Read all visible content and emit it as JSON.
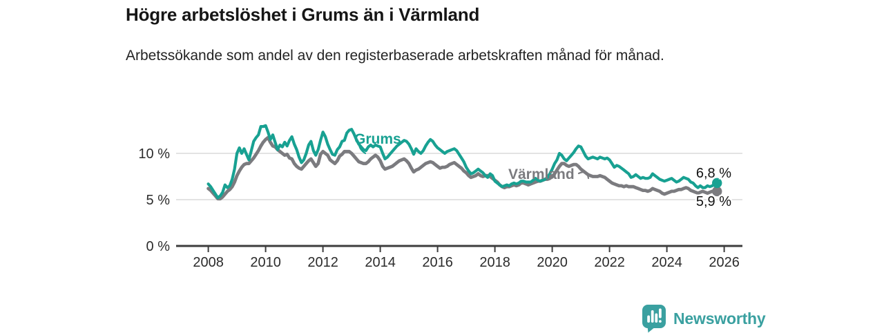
{
  "header": {
    "title": "Högre arbetslöshet i Grums än i Värmland",
    "subtitle": "Arbetssökande som andel av den registerbaserade arbetskraften månad för månad."
  },
  "footer": {
    "brand_name": "Newsworthy"
  },
  "colors": {
    "grums": "#18a192",
    "varmland": "#7b7b7f",
    "grid": "#dadada",
    "axis": "#3c3c3c",
    "tick_text": "#2b2b2b",
    "value_label": "#111111",
    "brand": "#3aa0a0"
  },
  "chart_data": {
    "type": "line",
    "unit": "%",
    "frequency": "monthly",
    "x_start": "2008-01",
    "x_end": "2025-10",
    "grid": "horizontal",
    "legend": "inline-labels",
    "ylim": [
      0,
      13.5
    ],
    "x_tick_labels": [
      "2008",
      "2010",
      "2012",
      "2014",
      "2016",
      "2018",
      "2020",
      "2022",
      "2024",
      "2026"
    ],
    "y_ticks": [
      {
        "value": 0,
        "label": "0 %"
      },
      {
        "value": 5,
        "label": "5 %"
      },
      {
        "value": 10,
        "label": "10 %"
      }
    ],
    "series": [
      {
        "name": "Grums",
        "color": "#18a192",
        "end_value": 6.8,
        "end_label": "6,8 %",
        "values": [
          6.7,
          6.4,
          6.0,
          5.6,
          5.2,
          5.4,
          5.8,
          6.6,
          6.3,
          6.5,
          7.2,
          8.3,
          10.0,
          10.6,
          10.0,
          10.5,
          9.9,
          9.3,
          10.3,
          11.3,
          11.7,
          12.0,
          12.9,
          12.9,
          13.0,
          12.3,
          11.5,
          12.0,
          11.2,
          10.4,
          10.9,
          10.7,
          11.2,
          10.8,
          11.4,
          11.8,
          11.0,
          10.4,
          9.6,
          9.0,
          9.3,
          10.0,
          10.9,
          11.3,
          10.3,
          9.8,
          10.4,
          11.4,
          12.3,
          11.8,
          11.0,
          10.4,
          9.9,
          9.8,
          10.4,
          10.7,
          11.3,
          11.4,
          12.2,
          12.5,
          12.6,
          12.1,
          11.5,
          11.0,
          10.7,
          10.4,
          10.3,
          10.7,
          10.9,
          10.7,
          10.9,
          10.8,
          10.7,
          10.0,
          9.4,
          9.6,
          9.9,
          10.2,
          10.5,
          10.8,
          11.0,
          11.2,
          11.4,
          11.3,
          11.0,
          10.5,
          9.9,
          10.5,
          10.2,
          10.0,
          10.3,
          10.8,
          11.2,
          11.5,
          11.3,
          10.9,
          10.6,
          10.4,
          10.2,
          10.0,
          10.2,
          10.3,
          10.4,
          10.5,
          10.3,
          9.9,
          9.5,
          9.1,
          8.5,
          8.1,
          7.8,
          7.9,
          8.1,
          8.3,
          8.1,
          7.9,
          7.6,
          7.4,
          7.8,
          7.6,
          7.0,
          6.8,
          6.6,
          6.4,
          6.5,
          6.6,
          6.5,
          6.7,
          6.8,
          6.7,
          6.8,
          7.0,
          7.0,
          6.9,
          6.9,
          6.9,
          7.1,
          7.3,
          7.1,
          7.0,
          7.1,
          7.2,
          7.4,
          7.8,
          8.3,
          8.9,
          9.3,
          10.0,
          9.8,
          9.4,
          9.2,
          9.5,
          9.8,
          10.1,
          10.5,
          10.8,
          10.7,
          10.2,
          9.7,
          9.4,
          9.5,
          9.6,
          9.5,
          9.4,
          9.6,
          9.5,
          9.4,
          9.5,
          9.3,
          8.9,
          8.5,
          8.7,
          8.6,
          8.4,
          8.2,
          8.0,
          7.8,
          7.4,
          7.5,
          7.7,
          7.5,
          7.3,
          7.4,
          7.3,
          7.3,
          7.4,
          7.8,
          7.6,
          7.4,
          7.2,
          7.1,
          7.0,
          7.1,
          7.2,
          7.3,
          7.1,
          6.9,
          7.0,
          7.2,
          7.4,
          7.3,
          7.2,
          6.9,
          6.8,
          6.5,
          6.3,
          6.5,
          6.3,
          6.3,
          6.5,
          6.4,
          6.5,
          6.7,
          6.8
        ]
      },
      {
        "name": "Värmland",
        "color": "#7b7b7f",
        "end_value": 5.9,
        "end_label": "5,9 %",
        "values": [
          6.2,
          6.0,
          5.7,
          5.4,
          5.1,
          5.1,
          5.3,
          5.6,
          5.9,
          6.1,
          6.4,
          6.9,
          7.6,
          8.1,
          8.5,
          8.8,
          8.9,
          8.9,
          9.2,
          9.5,
          9.9,
          10.3,
          10.8,
          11.2,
          11.5,
          11.7,
          11.2,
          10.8,
          10.7,
          10.4,
          10.2,
          10.0,
          9.8,
          9.9,
          9.5,
          9.4,
          8.9,
          8.6,
          8.4,
          8.3,
          8.6,
          8.9,
          9.2,
          9.4,
          9.0,
          8.6,
          8.9,
          9.9,
          10.2,
          10.0,
          9.8,
          9.3,
          9.1,
          8.9,
          9.2,
          9.7,
          9.9,
          10.2,
          10.2,
          10.2,
          10.0,
          9.7,
          9.4,
          9.1,
          9.0,
          8.9,
          8.9,
          9.1,
          9.4,
          9.6,
          9.8,
          9.6,
          9.2,
          8.6,
          8.3,
          8.4,
          8.5,
          8.6,
          8.8,
          9.0,
          9.2,
          9.3,
          9.4,
          9.2,
          8.9,
          8.4,
          8.0,
          8.2,
          8.3,
          8.5,
          8.7,
          8.9,
          9.0,
          9.1,
          9.0,
          8.8,
          8.6,
          8.4,
          8.5,
          8.5,
          8.6,
          8.8,
          8.9,
          9.0,
          8.8,
          8.6,
          8.4,
          8.1,
          7.9,
          7.6,
          7.4,
          7.5,
          7.6,
          7.8,
          7.6,
          7.5,
          7.6,
          7.6,
          7.5,
          7.3,
          7.1,
          6.9,
          6.6,
          6.4,
          6.3,
          6.4,
          6.4,
          6.5,
          6.6,
          6.5,
          6.6,
          6.8,
          6.8,
          6.7,
          6.6,
          6.7,
          6.8,
          6.9,
          7.0,
          7.0,
          7.1,
          7.2,
          7.2,
          7.3,
          7.5,
          7.8,
          8.2,
          8.6,
          8.9,
          8.9,
          8.7,
          8.6,
          8.7,
          8.8,
          8.8,
          8.6,
          8.3,
          8.1,
          7.9,
          7.7,
          7.6,
          7.5,
          7.5,
          7.5,
          7.6,
          7.5,
          7.4,
          7.2,
          7.0,
          6.8,
          6.7,
          6.6,
          6.5,
          6.5,
          6.4,
          6.5,
          6.4,
          6.4,
          6.4,
          6.3,
          6.2,
          6.1,
          6.0,
          6.0,
          5.9,
          6.0,
          6.2,
          6.1,
          6.0,
          5.9,
          5.7,
          5.6,
          5.7,
          5.8,
          5.9,
          5.9,
          6.0,
          6.1,
          6.1,
          6.2,
          6.3,
          6.2,
          6.0,
          5.9,
          5.8,
          5.7,
          5.8,
          5.9,
          5.8,
          5.7,
          5.8,
          5.9,
          5.9,
          5.9
        ]
      }
    ]
  }
}
